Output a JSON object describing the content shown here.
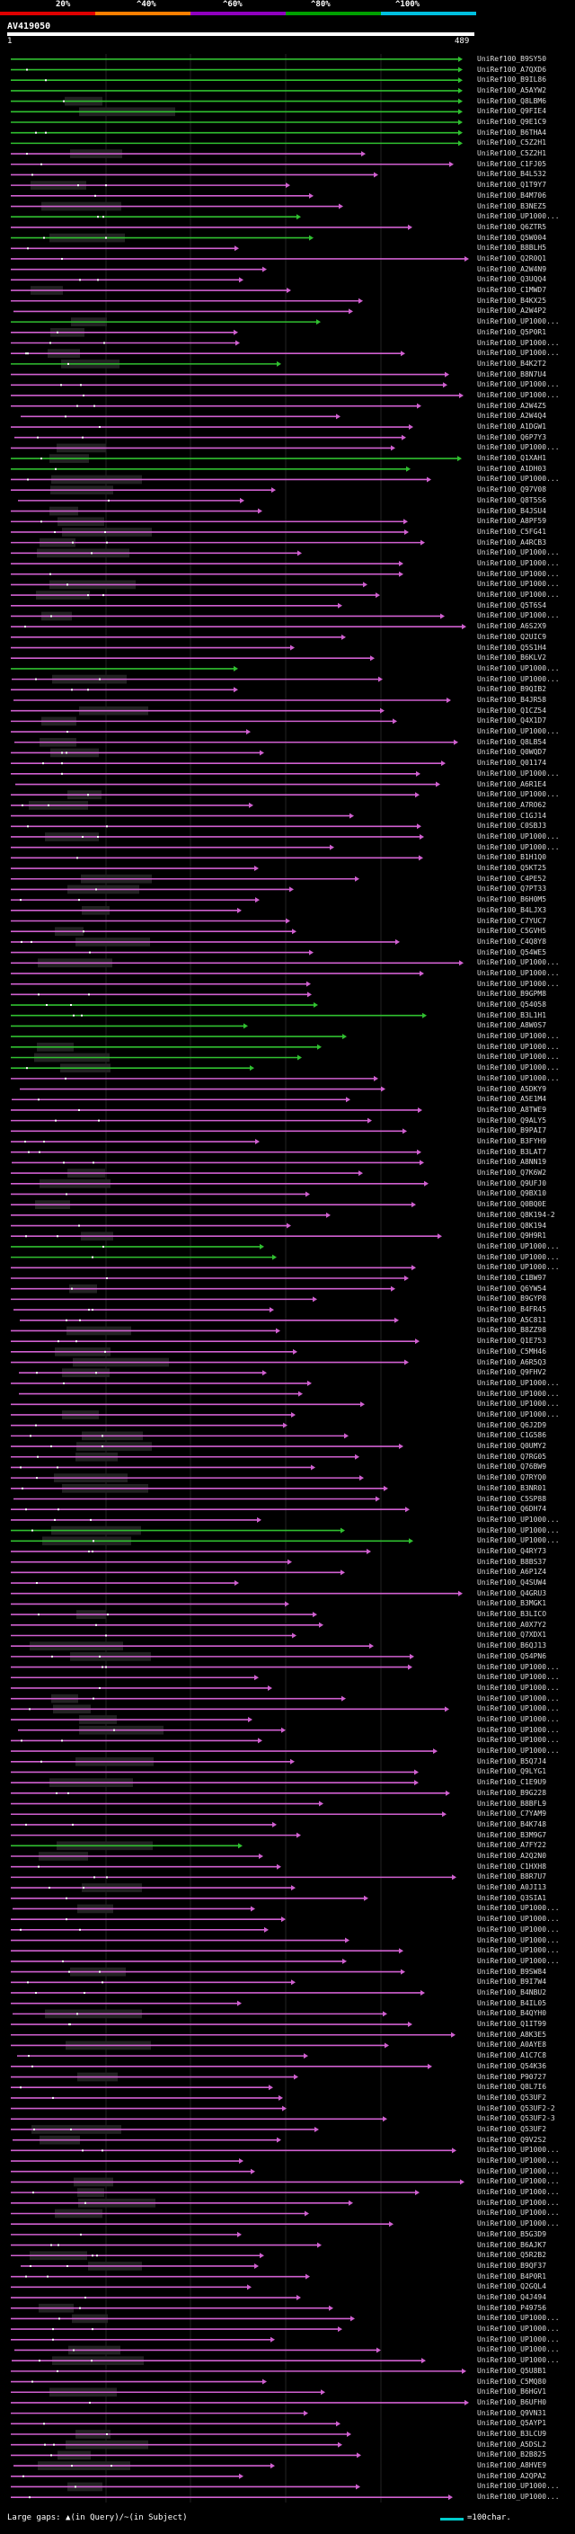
{
  "legend": {
    "labels": [
      "20%",
      "^40%",
      "^60%",
      "^80%",
      "^100%"
    ],
    "colors": [
      "#e00000",
      "#ff7f00",
      "#9000c0",
      "#00a000",
      "#00c0e0"
    ]
  },
  "query": {
    "id": "AV419050",
    "start": "1",
    "end": "489"
  },
  "footer": {
    "text": "Large gaps: ▲(in Query)/~(in Subject)",
    "scale": "=100char."
  },
  "colors": {
    "hit_magenta": "#d060d0",
    "hit_green": "#30c030",
    "track_dark": "#222222",
    "gap_box": "#555555"
  },
  "hits": [
    "UniRef100_B9SY50",
    "UniRef100_A7QXD6",
    "UniRef100_B9IL86",
    "UniRef100_A5AYW2",
    "UniRef100_Q8LBM6",
    "UniRef100_Q9FIE4",
    "UniRef100_Q9E1C9",
    "UniRef100_B6THA4",
    "UniRef100_C5Z2H1",
    "UniRef100_C5Z2H1",
    "UniRef100_C1FJ05",
    "UniRef100_B4L532",
    "UniRef100_Q1T9Y7",
    "UniRef100_B4M706",
    "UniRef100_B3NEZ5",
    "UniRef100_UP1000...",
    "UniRef100_Q6ZTR5",
    "UniRef100_Q5W004",
    "UniRef100_B8BLH5",
    "UniRef100_Q2R0Q1",
    "UniRef100_A2W4N9",
    "UniRef100_Q3UQQ4",
    "UniRef100_C1MWD7",
    "UniRef100_B4KX25",
    "UniRef100_A2W4P2",
    "UniRef100_UP1000...",
    "UniRef100_Q5P0R1",
    "UniRef100_UP1000...",
    "UniRef100_UP1000...",
    "UniRef100_B4K2T2",
    "UniRef100_B8N7U4",
    "UniRef100_UP1000...",
    "UniRef100_UP1000...",
    "UniRef100_A2W4Z5",
    "UniRef100_A2W4Q4",
    "UniRef100_A1DGW1",
    "UniRef100_Q6P7Y3",
    "UniRef100_UP1000...",
    "UniRef100_Q1XAH1",
    "UniRef100_A1DH03",
    "UniRef100_UP1000...",
    "UniRef100_Q97V08",
    "UniRef100_Q8T5S6",
    "UniRef100_B4JSU4",
    "UniRef100_A8PF59",
    "UniRef100_C5FG41",
    "UniRef100_A4RCB3",
    "UniRef100_UP1000...",
    "UniRef100_UP1000...",
    "UniRef100_UP1000...",
    "UniRef100_UP1000...",
    "UniRef100_UP1000...",
    "UniRef100_Q5T6S4",
    "UniRef100_UP1000...",
    "UniRef100_A6S2X9",
    "UniRef100_Q2UIC9",
    "UniRef100_Q5S1H4",
    "UniRef100_B6KLV2",
    "UniRef100_UP1000...",
    "UniRef100_UP1000...",
    "UniRef100_B9QIB2",
    "UniRef100_B4JR58",
    "UniRef100_Q1CZ54",
    "UniRef100_Q4X1D7",
    "UniRef100_UP1000...",
    "UniRef100_Q8LB54",
    "UniRef100_Q0WQD7",
    "UniRef100_Q01174",
    "UniRef100_UP1000...",
    "UniRef100_A6R1E4",
    "UniRef100_UP1000...",
    "UniRef100_A7RO62",
    "UniRef100_C1GJ14",
    "UniRef100_C0SBJ3",
    "UniRef100_UP1000...",
    "UniRef100_UP1000...",
    "UniRef100_B1H1Q0",
    "UniRef100_Q5KT25",
    "UniRef100_C4PE52",
    "UniRef100_Q7PT33",
    "UniRef100_B6H0M5",
    "UniRef100_B4LJX3",
    "UniRef100_C7YUC7",
    "UniRef100_C5GVH5",
    "UniRef100_C4Q8Y8",
    "UniRef100_Q54WE5",
    "UniRef100_UP1000...",
    "UniRef100_UP1000...",
    "UniRef100_UP1000...",
    "UniRef100_B9GPM8",
    "UniRef100_Q54058",
    "UniRef100_B3L1H1",
    "UniRef100_A8W0S7",
    "UniRef100_UP1000...",
    "UniRef100_UP1000...",
    "UniRef100_UP1000...",
    "UniRef100_UP1000...",
    "UniRef100_UP1000...",
    "UniRef100_A5DKY9",
    "UniRef100_A5E1M4",
    "UniRef100_A8TWE9",
    "UniRef100_Q9ALY5",
    "UniRef100_B9PAI7",
    "UniRef100_B3FYH9",
    "UniRef100_B3LAT7",
    "UniRef100_A8NN19",
    "UniRef100_Q7K6W2",
    "UniRef100_Q9UFJ0",
    "UniRef100_Q9BX10",
    "UniRef100_Q0BQ0E",
    "UniRef100_Q8K194-2",
    "UniRef100_Q8K194",
    "UniRef100_Q9H9R1",
    "UniRef100_UP1000...",
    "UniRef100_UP1000...",
    "UniRef100_UP1000...",
    "UniRef100_C1BW97",
    "UniRef100_Q6YW54",
    "UniRef100_B9GYP8",
    "UniRef100_B4FR45",
    "UniRef100_A5C811",
    "UniRef100_B8ZZ98",
    "UniRef100_Q1E753",
    "UniRef100_C5MH46",
    "UniRef100_A6R5Q3",
    "UniRef100_Q9FHV2",
    "UniRef100_UP1000...",
    "UniRef100_UP1000...",
    "UniRef100_UP1000...",
    "UniRef100_UP1000...",
    "UniRef100_Q6J2D9",
    "UniRef100_C1G586",
    "UniRef100_Q0UMY2",
    "UniRef100_Q7RG05",
    "UniRef100_Q76BW9",
    "UniRef100_Q7RYQ0",
    "UniRef100_B3NR01",
    "UniRef100_C5SP88",
    "UniRef100_Q6DH74",
    "UniRef100_UP1000...",
    "UniRef100_UP1000...",
    "UniRef100_UP1000...",
    "UniRef100_Q4RY73",
    "UniRef100_B8BS37",
    "UniRef100_A6P1Z4",
    "UniRef100_Q4SUW4",
    "UniRef100_Q4GRU3",
    "UniRef100_B3MGK1",
    "UniRef100_B3LICO",
    "UniRef100_A0X7Y2",
    "UniRef100_Q7XDX1",
    "UniRef100_B6QJ13",
    "UniRef100_Q54PN6",
    "UniRef100_UP1000...",
    "UniRef100_UP1000...",
    "UniRef100_UP1000...",
    "UniRef100_UP1000...",
    "UniRef100_UP1000...",
    "UniRef100_UP1000...",
    "UniRef100_UP1000...",
    "UniRef100_UP1000...",
    "UniRef100_UP1000...",
    "UniRef100_B5Q7J4",
    "UniRef100_Q9LYG1",
    "UniRef100_C1E9U9",
    "UniRef100_B9G228",
    "UniRef100_B8BFL9",
    "UniRef100_C7YAM9",
    "UniRef100_B4K748",
    "UniRef100_B3M9G7",
    "UniRef100_A7FY22",
    "UniRef100_A2Q2N0",
    "UniRef100_C1HXH8",
    "UniRef100_B8R7U7",
    "UniRef100_A0JI13",
    "UniRef100_Q3SIA1",
    "UniRef100_UP1000...",
    "UniRef100_UP1000...",
    "UniRef100_UP1000...",
    "UniRef100_UP1000...",
    "UniRef100_UP1000...",
    "UniRef100_UP1000...",
    "UniRef100_B9SW84",
    "UniRef100_B9I7W4",
    "UniRef100_B4NBU2",
    "UniRef100_B4IL05",
    "UniRef100_B4QYH0",
    "UniRef100_Q1IT99",
    "UniRef100_A8K3E5",
    "UniRef100_A0AYE8",
    "UniRef100_A1C7C8",
    "UniRef100_Q54K36",
    "UniRef100_P90727",
    "UniRef100_Q8L7I6",
    "UniRef100_Q53UF2",
    "UniRef100_Q53UF2-2",
    "UniRef100_Q53UF2-3",
    "UniRef100_Q53UF2",
    "UniRef100_Q9V2S2",
    "UniRef100_UP1000...",
    "UniRef100_UP1000...",
    "UniRef100_UP1000...",
    "UniRef100_UP1000...",
    "UniRef100_UP1000...",
    "UniRef100_UP1000...",
    "UniRef100_UP1000...",
    "UniRef100_UP1000...",
    "UniRef100_B5G3D9",
    "UniRef100_B6AJK7",
    "UniRef100_Q5R2B2",
    "UniRef100_B9QF37",
    "UniRef100_B4P0R1",
    "UniRef100_Q2GQL4",
    "UniRef100_Q4J494",
    "UniRef100_P49756",
    "UniRef100_UP1000...",
    "UniRef100_UP1000...",
    "UniRef100_UP1000...",
    "UniRef100_UP1000...",
    "UniRef100_UP1000...",
    "UniRef100_Q5U8B1",
    "UniRef100_C5MQ80",
    "UniRef100_B6HGV1",
    "UniRef100_B6UFH0",
    "UniRef100_Q9VN31",
    "UniRef100_Q5AYP1",
    "UniRef100_B3LCU9",
    "UniRef100_A5DSL2",
    "UniRef100_B2B825",
    "UniRef100_A8HVE9",
    "UniRef100_A2QPA2",
    "UniRef100_UP1000...",
    "UniRef100_UP1000..."
  ]
}
